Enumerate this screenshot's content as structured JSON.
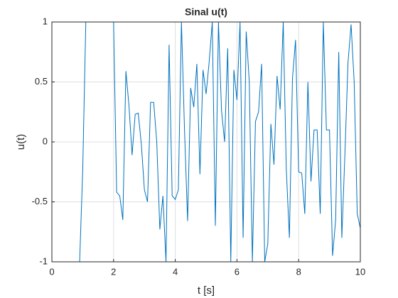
{
  "chart_data": {
    "type": "line",
    "title": "Sinal u(t)",
    "x_label": "t [s]",
    "y_label": "u(t)",
    "x": [
      0,
      0.1,
      0.2,
      0.3,
      0.4,
      0.5,
      0.6,
      0.7,
      0.8,
      0.9,
      1,
      1.1,
      1.2,
      1.3,
      1.4,
      1.5,
      1.6,
      1.7,
      1.8,
      1.9,
      2,
      2.1,
      2.2,
      2.3,
      2.4,
      2.5,
      2.6,
      2.7,
      2.8,
      2.9,
      3,
      3.1,
      3.2,
      3.3,
      3.4,
      3.5,
      3.6,
      3.7,
      3.8,
      3.9,
      4,
      4.1,
      4.2,
      4.3,
      4.4,
      4.5,
      4.6,
      4.7,
      4.8,
      4.9,
      5,
      5.1,
      5.2,
      5.3,
      5.4,
      5.5,
      5.6,
      5.7,
      5.8,
      5.9,
      6,
      6.1,
      6.2,
      6.3,
      6.4,
      6.5,
      6.6,
      6.7,
      6.8,
      6.9,
      7,
      7.1,
      7.2,
      7.3,
      7.4,
      7.5,
      7.6,
      7.7,
      7.8,
      7.9,
      8,
      8.1,
      8.2,
      8.3,
      8.4,
      8.5,
      8.6,
      8.7,
      8.8,
      8.9,
      9,
      9.1,
      9.2,
      9.3,
      9.4,
      9.5,
      9.6,
      9.7,
      9.8,
      9.9,
      10
    ],
    "series": [
      {
        "color": "#0072bd",
        "values": [
          -1,
          -1,
          -1,
          -1,
          -1,
          -1,
          -1,
          -1,
          -1,
          -1,
          -0.23,
          1,
          1,
          1,
          1,
          1,
          1,
          1,
          1,
          1,
          1,
          -0.42,
          -0.45,
          -0.65,
          0.59,
          0.3,
          -0.11,
          0.23,
          0.24,
          -0.02,
          -0.4,
          -0.5,
          0.33,
          0.33,
          0,
          -0.73,
          -0.45,
          -1,
          0.81,
          -0.45,
          -0.48,
          -0.4,
          1,
          0.1,
          -0.66,
          0.45,
          0.29,
          0.65,
          -0.27,
          0.6,
          0.4,
          0.67,
          1,
          -0.7,
          1,
          0.26,
          0,
          0.78,
          -1,
          0.6,
          0.35,
          1,
          -0.8,
          0.92,
          0.5,
          -1,
          0.17,
          0.25,
          0.65,
          -1,
          -0.85,
          0.15,
          -0.19,
          0.55,
          0.27,
          1,
          -0.23,
          -0.8,
          0.53,
          0.85,
          -0.25,
          -0.26,
          -0.6,
          0.5,
          -0.33,
          0.1,
          0.1,
          -0.6,
          1,
          0.1,
          0.1,
          -0.95,
          -0.65,
          0.75,
          -0.8,
          -0.1,
          0.66,
          0.98,
          0.5,
          -0.6,
          -0.72
        ]
      }
    ],
    "xlim": [
      0,
      10
    ],
    "xticks": [
      0,
      2,
      4,
      6,
      8,
      10
    ],
    "ylim": [
      -1,
      1
    ],
    "yticks": [
      -1,
      -0.5,
      0,
      0.5,
      1
    ],
    "grid": true
  }
}
